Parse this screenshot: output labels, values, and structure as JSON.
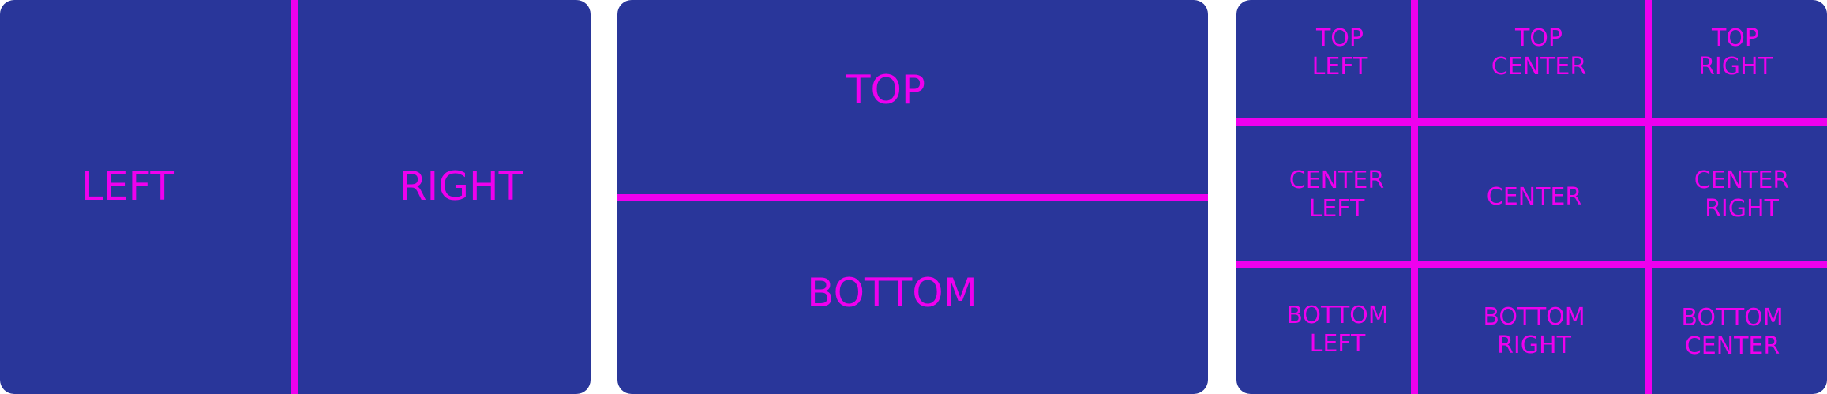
{
  "colors": {
    "panel": "#29369a",
    "divider": "#ee00ee",
    "text": "#ee00ee",
    "background": "#ffffff"
  },
  "split_horizontal": {
    "left": "LEFT",
    "right": "RIGHT"
  },
  "split_vertical": {
    "top": "TOP",
    "bottom": "BOTTOM"
  },
  "grid": {
    "top_left": "TOP\nLEFT",
    "top_center": "TOP\nCENTER",
    "top_right": "TOP\nRIGHT",
    "center_left": "CENTER\nLEFT",
    "center": "CENTER",
    "center_right": "CENTER\nRIGHT",
    "bottom_left": "BOTTOM\nLEFT",
    "bottom_right": "BOTTOM\nRIGHT",
    "bottom_center": "BOTTOM\nCENTER"
  }
}
